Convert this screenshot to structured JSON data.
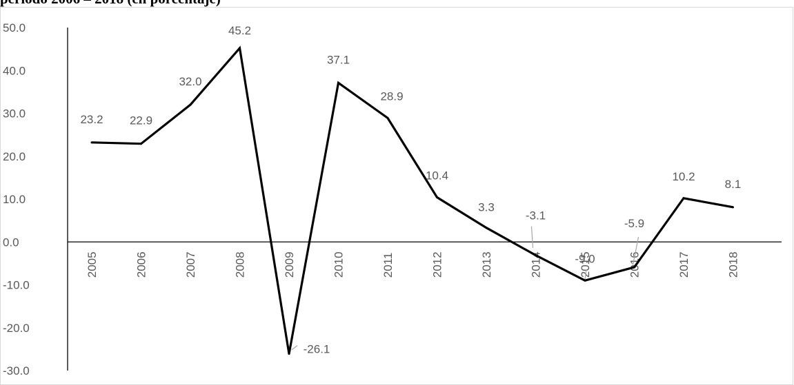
{
  "title": "período 2006 – 2018 (en porcentaje)",
  "chart_data": {
    "type": "line",
    "categories": [
      "2005",
      "2006",
      "2007",
      "2008",
      "2009",
      "2010",
      "2011",
      "2012",
      "2013",
      "2014",
      "2015",
      "2016",
      "2017",
      "2018"
    ],
    "series": [
      {
        "values": [
          23.2,
          22.9,
          32.0,
          45.2,
          -26.1,
          37.1,
          28.9,
          10.4,
          3.3,
          -3.1,
          -9.0,
          -5.9,
          10.2,
          8.1
        ]
      }
    ],
    "ylim": [
      -30,
      50
    ],
    "yticks": [
      "50.0",
      "40.0",
      "30.0",
      "20.0",
      "10.0",
      "0.0",
      "-10.0",
      "-20.0",
      "-30.0"
    ],
    "data_labels": [
      "23.2",
      "22.9",
      "32.0",
      "45.2",
      "-26.1",
      "37.1",
      "28.9",
      "10.4",
      "3.3",
      "-3.1",
      "-9.0",
      "-5.9",
      "10.2",
      "8.1"
    ],
    "grid": false,
    "legend": "none",
    "line_color": "#000000",
    "axis_color": "#000000",
    "text_color": "#595959"
  }
}
